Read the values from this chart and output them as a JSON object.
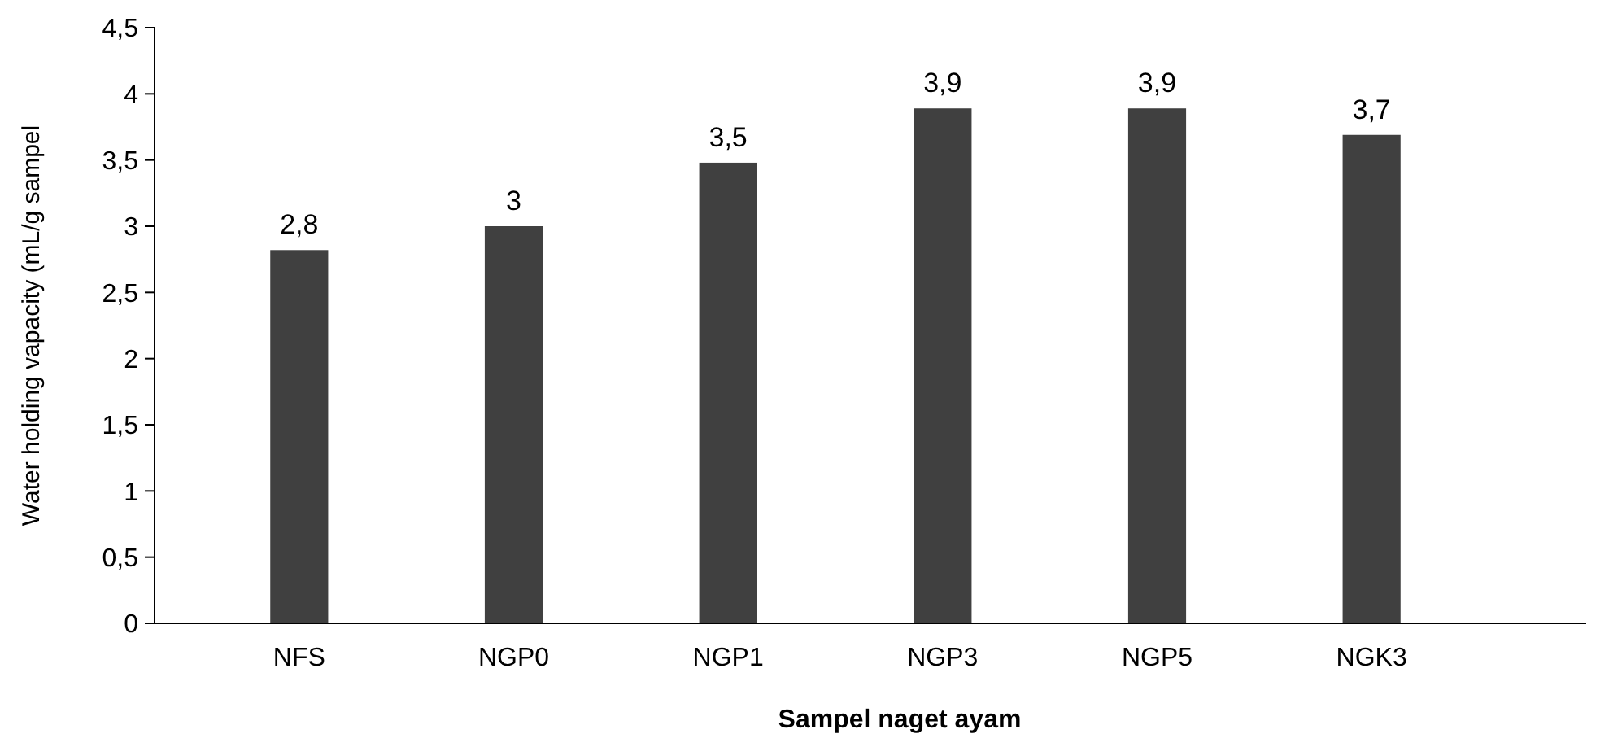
{
  "chart_data": {
    "type": "bar",
    "xlabel": "Sampel naget ayam",
    "ylabel": "Water holding vapacity (mL/g sampel",
    "categories": [
      "NFS",
      "NGP0",
      "NGP1",
      "NGP3",
      "NGP5",
      "NGK3"
    ],
    "values": [
      2.82,
      3.0,
      3.48,
      3.89,
      3.89,
      3.69
    ],
    "value_labels": [
      "2,8",
      "3",
      "3,5",
      "3,9",
      "3,9",
      "3,7"
    ],
    "color": "#404040",
    "ylim": [
      0,
      4.5
    ],
    "yticks": [
      0,
      {
        "value": 0.5,
        "label": "0,5"
      },
      1,
      {
        "value": 1.5,
        "label": "1,5"
      },
      2,
      {
        "value": 2.5,
        "label": "2,5"
      },
      3,
      {
        "value": 3.5,
        "label": "3,5"
      },
      4,
      {
        "value": 4.5,
        "label": "4,5"
      }
    ],
    "grid": false
  }
}
